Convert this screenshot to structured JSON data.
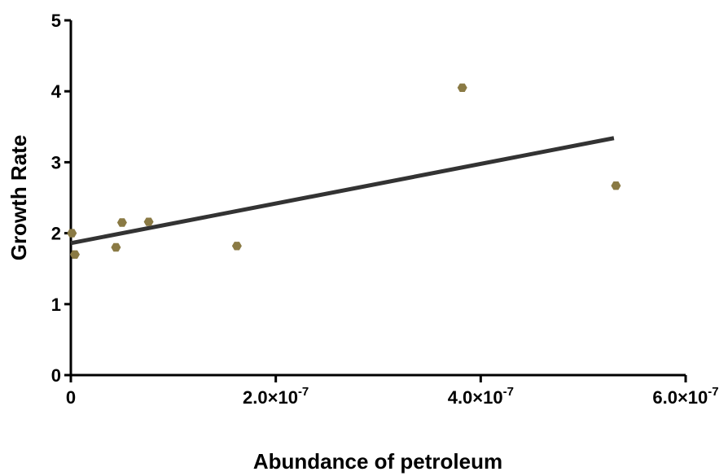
{
  "chart_data": {
    "type": "scatter",
    "title": "",
    "xlabel": "Abundance of petroleum",
    "ylabel": "Growth Rate",
    "xlim": [
      0,
      6e-07
    ],
    "ylim": [
      0,
      5
    ],
    "grid": false,
    "legend": "none",
    "x_ticks": [
      {
        "value": 0,
        "mantissa": "0",
        "exponent": ""
      },
      {
        "value": 2e-07,
        "mantissa": "2.0×10",
        "exponent": "-7"
      },
      {
        "value": 4e-07,
        "mantissa": "4.0×10",
        "exponent": "-7"
      },
      {
        "value": 6e-07,
        "mantissa": "6.0×10",
        "exponent": "-7"
      }
    ],
    "y_ticks": [
      {
        "value": 0,
        "label": "0"
      },
      {
        "value": 1,
        "label": "1"
      },
      {
        "value": 2,
        "label": "2"
      },
      {
        "value": 3,
        "label": "3"
      },
      {
        "value": 4,
        "label": "4"
      },
      {
        "value": 5,
        "label": "5"
      }
    ],
    "points": [
      {
        "x": 1e-09,
        "y": 2.0
      },
      {
        "x": 4e-09,
        "y": 1.7
      },
      {
        "x": 4.4e-08,
        "y": 1.8
      },
      {
        "x": 5e-08,
        "y": 2.15
      },
      {
        "x": 7.6e-08,
        "y": 2.16
      },
      {
        "x": 1.62e-07,
        "y": 1.82
      },
      {
        "x": 3.82e-07,
        "y": 4.05
      },
      {
        "x": 5.32e-07,
        "y": 2.67
      }
    ],
    "fit_line": {
      "x": [
        0,
        5.3e-07
      ],
      "y": [
        1.86,
        3.34
      ]
    },
    "point_color": "#8a7a44",
    "line_color": "#333333"
  }
}
